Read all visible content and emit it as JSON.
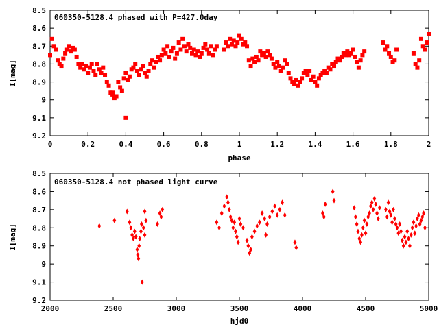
{
  "chart_data": [
    {
      "type": "scatter",
      "title": "060350-5128.4 phased with P=427.0day",
      "xlabel": "phase",
      "ylabel": "I[mag]",
      "xlim": [
        0,
        2
      ],
      "ylim": [
        9.2,
        8.5
      ],
      "y_inverted": true,
      "x_ticks": [
        "0",
        "0.2",
        "0.4",
        "0.6",
        "0.8",
        "1",
        "1.2",
        "1.4",
        "1.6",
        "1.8",
        "2"
      ],
      "y_ticks": [
        "8.5",
        "8.6",
        "8.7",
        "8.8",
        "8.9",
        "9",
        "9.1",
        "9.2"
      ],
      "marker_color": "#ff0000",
      "grid": false,
      "points": [
        [
          0.0,
          8.75
        ],
        [
          0.01,
          8.66
        ],
        [
          0.02,
          8.7
        ],
        [
          0.03,
          8.72
        ],
        [
          0.04,
          8.78
        ],
        [
          0.05,
          8.8
        ],
        [
          0.06,
          8.81
        ],
        [
          0.07,
          8.77
        ],
        [
          0.08,
          8.74
        ],
        [
          0.09,
          8.72
        ],
        [
          0.1,
          8.7
        ],
        [
          0.11,
          8.73
        ],
        [
          0.12,
          8.71
        ],
        [
          0.13,
          8.72
        ],
        [
          0.14,
          8.76
        ],
        [
          0.15,
          8.8
        ],
        [
          0.16,
          8.82
        ],
        [
          0.17,
          8.8
        ],
        [
          0.18,
          8.83
        ],
        [
          0.19,
          8.81
        ],
        [
          0.2,
          8.85
        ],
        [
          0.21,
          8.82
        ],
        [
          0.22,
          8.8
        ],
        [
          0.23,
          8.84
        ],
        [
          0.24,
          8.86
        ],
        [
          0.25,
          8.8
        ],
        [
          0.26,
          8.83
        ],
        [
          0.27,
          8.85
        ],
        [
          0.28,
          8.82
        ],
        [
          0.29,
          8.86
        ],
        [
          0.3,
          8.9
        ],
        [
          0.31,
          8.92
        ],
        [
          0.32,
          8.96
        ],
        [
          0.33,
          8.97
        ],
        [
          0.34,
          8.99
        ],
        [
          0.35,
          8.98
        ],
        [
          0.36,
          8.9
        ],
        [
          0.37,
          8.93
        ],
        [
          0.38,
          8.95
        ],
        [
          0.39,
          8.88
        ],
        [
          0.4,
          8.85
        ],
        [
          0.41,
          8.89
        ],
        [
          0.42,
          8.87
        ],
        [
          0.43,
          8.83
        ],
        [
          0.44,
          8.82
        ],
        [
          0.45,
          8.8
        ],
        [
          0.46,
          8.84
        ],
        [
          0.47,
          8.86
        ],
        [
          0.48,
          8.83
        ],
        [
          0.49,
          8.81
        ],
        [
          0.5,
          8.85
        ],
        [
          0.51,
          8.87
        ],
        [
          0.52,
          8.84
        ],
        [
          0.53,
          8.8
        ],
        [
          0.54,
          8.78
        ],
        [
          0.55,
          8.82
        ],
        [
          0.56,
          8.79
        ],
        [
          0.57,
          8.76
        ],
        [
          0.58,
          8.78
        ],
        [
          0.59,
          8.75
        ],
        [
          0.6,
          8.72
        ],
        [
          0.61,
          8.74
        ],
        [
          0.62,
          8.7
        ],
        [
          0.63,
          8.76
        ],
        [
          0.64,
          8.73
        ],
        [
          0.65,
          8.71
        ],
        [
          0.66,
          8.77
        ],
        [
          0.67,
          8.74
        ],
        [
          0.68,
          8.68
        ],
        [
          0.69,
          8.72
        ],
        [
          0.7,
          8.66
        ],
        [
          0.71,
          8.7
        ],
        [
          0.72,
          8.73
        ],
        [
          0.73,
          8.69
        ],
        [
          0.74,
          8.71
        ],
        [
          0.75,
          8.74
        ],
        [
          0.76,
          8.72
        ],
        [
          0.77,
          8.75
        ],
        [
          0.78,
          8.73
        ],
        [
          0.79,
          8.76
        ],
        [
          0.8,
          8.74
        ],
        [
          0.81,
          8.71
        ],
        [
          0.82,
          8.69
        ],
        [
          0.83,
          8.72
        ],
        [
          0.84,
          8.74
        ],
        [
          0.85,
          8.7
        ],
        [
          0.86,
          8.75
        ],
        [
          0.87,
          8.72
        ],
        [
          0.88,
          8.7
        ],
        [
          0.92,
          8.72
        ],
        [
          0.93,
          8.68
        ],
        [
          0.94,
          8.7
        ],
        [
          0.95,
          8.66
        ],
        [
          0.96,
          8.69
        ],
        [
          0.97,
          8.67
        ],
        [
          0.98,
          8.7
        ],
        [
          0.99,
          8.68
        ],
        [
          1.0,
          8.64
        ],
        [
          1.01,
          8.66
        ],
        [
          1.02,
          8.69
        ],
        [
          1.03,
          8.68
        ],
        [
          1.04,
          8.7
        ],
        [
          1.05,
          8.78
        ],
        [
          1.06,
          8.81
        ],
        [
          1.07,
          8.77
        ],
        [
          1.08,
          8.79
        ],
        [
          1.09,
          8.76
        ],
        [
          1.1,
          8.78
        ],
        [
          1.11,
          8.73
        ],
        [
          1.12,
          8.75
        ],
        [
          1.13,
          8.74
        ],
        [
          1.14,
          8.76
        ],
        [
          1.15,
          8.73
        ],
        [
          1.16,
          8.75
        ],
        [
          1.17,
          8.77
        ],
        [
          1.18,
          8.8
        ],
        [
          1.19,
          8.82
        ],
        [
          1.2,
          8.79
        ],
        [
          1.21,
          8.81
        ],
        [
          1.22,
          8.84
        ],
        [
          1.23,
          8.82
        ],
        [
          1.24,
          8.78
        ],
        [
          1.25,
          8.8
        ],
        [
          1.26,
          8.85
        ],
        [
          1.27,
          8.88
        ],
        [
          1.28,
          8.9
        ],
        [
          1.29,
          8.91
        ],
        [
          1.3,
          8.89
        ],
        [
          1.31,
          8.92
        ],
        [
          1.32,
          8.9
        ],
        [
          1.33,
          8.88
        ],
        [
          1.34,
          8.85
        ],
        [
          1.35,
          8.84
        ],
        [
          1.36,
          8.86
        ],
        [
          1.37,
          8.84
        ],
        [
          1.38,
          8.89
        ],
        [
          1.39,
          8.87
        ],
        [
          1.4,
          8.9
        ],
        [
          1.41,
          8.92
        ],
        [
          1.42,
          8.88
        ],
        [
          1.43,
          8.86
        ],
        [
          1.44,
          8.85
        ],
        [
          1.45,
          8.84
        ],
        [
          1.46,
          8.85
        ],
        [
          1.47,
          8.82
        ],
        [
          1.48,
          8.83
        ],
        [
          1.49,
          8.8
        ],
        [
          1.5,
          8.81
        ],
        [
          1.51,
          8.79
        ],
        [
          1.52,
          8.77
        ],
        [
          1.53,
          8.78
        ],
        [
          1.54,
          8.76
        ],
        [
          1.55,
          8.74
        ],
        [
          1.56,
          8.75
        ],
        [
          1.57,
          8.73
        ],
        [
          1.58,
          8.75
        ],
        [
          1.59,
          8.74
        ],
        [
          1.6,
          8.72
        ],
        [
          1.61,
          8.76
        ],
        [
          1.62,
          8.79
        ],
        [
          1.63,
          8.82
        ],
        [
          1.64,
          8.78
        ],
        [
          1.65,
          8.75
        ],
        [
          1.66,
          8.73
        ],
        [
          1.76,
          8.68
        ],
        [
          1.77,
          8.72
        ],
        [
          1.78,
          8.7
        ],
        [
          1.79,
          8.74
        ],
        [
          1.8,
          8.76
        ],
        [
          1.81,
          8.79
        ],
        [
          1.82,
          8.78
        ],
        [
          1.83,
          8.72
        ],
        [
          1.92,
          8.74
        ],
        [
          1.93,
          8.8
        ],
        [
          1.94,
          8.82
        ],
        [
          1.95,
          8.78
        ],
        [
          1.96,
          8.66
        ],
        [
          1.97,
          8.7
        ],
        [
          1.98,
          8.72
        ],
        [
          1.99,
          8.68
        ],
        [
          2.0,
          8.63
        ]
      ],
      "outliers": [
        [
          0.4,
          9.1
        ],
        [
          0.33,
          8.96
        ]
      ]
    },
    {
      "type": "scatter",
      "title": "060350-5128.4 not phased light curve",
      "xlabel": "hjd0",
      "ylabel": "I[mag]",
      "xlim": [
        2000,
        5000
      ],
      "ylim": [
        9.2,
        8.5
      ],
      "y_inverted": true,
      "x_ticks": [
        "2000",
        "2500",
        "3000",
        "3500",
        "4000",
        "4500",
        "5000"
      ],
      "y_ticks": [
        "8.5",
        "8.6",
        "8.7",
        "8.8",
        "8.9",
        "9",
        "9.1",
        "9.2"
      ],
      "marker_color": "#ff0000",
      "grid": false,
      "points": [
        [
          2390,
          8.79
        ],
        [
          2510,
          8.76
        ],
        [
          2610,
          8.71
        ],
        [
          2630,
          8.77
        ],
        [
          2640,
          8.8
        ],
        [
          2650,
          8.84
        ],
        [
          2660,
          8.86
        ],
        [
          2670,
          8.82
        ],
        [
          2680,
          8.85
        ],
        [
          2690,
          8.92
        ],
        [
          2695,
          8.95
        ],
        [
          2700,
          8.97
        ],
        [
          2705,
          8.9
        ],
        [
          2710,
          8.86
        ],
        [
          2720,
          8.82
        ],
        [
          2725,
          8.78
        ],
        [
          2730,
          9.1
        ],
        [
          2740,
          8.8
        ],
        [
          2750,
          8.84
        ],
        [
          2760,
          8.76
        ],
        [
          2750,
          8.71
        ],
        [
          2850,
          8.78
        ],
        [
          2870,
          8.72
        ],
        [
          2880,
          8.74
        ],
        [
          2890,
          8.7
        ],
        [
          3320,
          8.77
        ],
        [
          3340,
          8.8
        ],
        [
          3360,
          8.72
        ],
        [
          3380,
          8.68
        ],
        [
          3400,
          8.63
        ],
        [
          3410,
          8.66
        ],
        [
          3420,
          8.7
        ],
        [
          3430,
          8.74
        ],
        [
          3440,
          8.76
        ],
        [
          3450,
          8.8
        ],
        [
          3460,
          8.77
        ],
        [
          3470,
          8.82
        ],
        [
          3480,
          8.85
        ],
        [
          3490,
          8.88
        ],
        [
          3500,
          8.75
        ],
        [
          3510,
          8.78
        ],
        [
          3530,
          8.8
        ],
        [
          3560,
          8.87
        ],
        [
          3570,
          8.9
        ],
        [
          3580,
          8.94
        ],
        [
          3590,
          8.92
        ],
        [
          3600,
          8.85
        ],
        [
          3620,
          8.82
        ],
        [
          3640,
          8.79
        ],
        [
          3660,
          8.77
        ],
        [
          3680,
          8.72
        ],
        [
          3700,
          8.75
        ],
        [
          3710,
          8.84
        ],
        [
          3720,
          8.78
        ],
        [
          3740,
          8.74
        ],
        [
          3760,
          8.71
        ],
        [
          3780,
          8.68
        ],
        [
          3800,
          8.73
        ],
        [
          3820,
          8.7
        ],
        [
          3840,
          8.66
        ],
        [
          3860,
          8.73
        ],
        [
          3940,
          8.88
        ],
        [
          3950,
          8.91
        ],
        [
          4160,
          8.72
        ],
        [
          4170,
          8.74
        ],
        [
          4180,
          8.67
        ],
        [
          4240,
          8.6
        ],
        [
          4250,
          8.65
        ],
        [
          4410,
          8.69
        ],
        [
          4420,
          8.74
        ],
        [
          4430,
          8.78
        ],
        [
          4440,
          8.82
        ],
        [
          4450,
          8.86
        ],
        [
          4460,
          8.88
        ],
        [
          4470,
          8.84
        ],
        [
          4480,
          8.8
        ],
        [
          4490,
          8.76
        ],
        [
          4500,
          8.83
        ],
        [
          4510,
          8.78
        ],
        [
          4520,
          8.74
        ],
        [
          4530,
          8.72
        ],
        [
          4540,
          8.68
        ],
        [
          4550,
          8.66
        ],
        [
          4560,
          8.7
        ],
        [
          4570,
          8.64
        ],
        [
          4580,
          8.67
        ],
        [
          4590,
          8.72
        ],
        [
          4600,
          8.75
        ],
        [
          4610,
          8.69
        ],
        [
          4660,
          8.7
        ],
        [
          4670,
          8.74
        ],
        [
          4680,
          8.66
        ],
        [
          4690,
          8.71
        ],
        [
          4700,
          8.73
        ],
        [
          4710,
          8.77
        ],
        [
          4720,
          8.7
        ],
        [
          4730,
          8.75
        ],
        [
          4740,
          8.78
        ],
        [
          4750,
          8.8
        ],
        [
          4760,
          8.83
        ],
        [
          4770,
          8.78
        ],
        [
          4780,
          8.82
        ],
        [
          4790,
          8.87
        ],
        [
          4800,
          8.9
        ],
        [
          4810,
          8.85
        ],
        [
          4820,
          8.88
        ],
        [
          4830,
          8.82
        ],
        [
          4840,
          8.86
        ],
        [
          4850,
          8.9
        ],
        [
          4860,
          8.84
        ],
        [
          4870,
          8.8
        ],
        [
          4880,
          8.77
        ],
        [
          4890,
          8.83
        ],
        [
          4900,
          8.79
        ],
        [
          4910,
          8.75
        ],
        [
          4920,
          8.73
        ],
        [
          4930,
          8.78
        ],
        [
          4940,
          8.76
        ],
        [
          4950,
          8.74
        ],
        [
          4960,
          8.72
        ],
        [
          4970,
          8.8
        ]
      ]
    }
  ]
}
